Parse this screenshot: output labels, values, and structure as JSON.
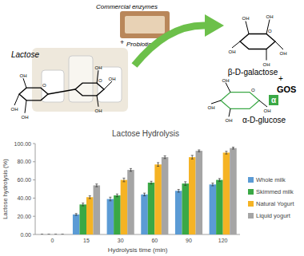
{
  "chart_data": {
    "type": "bar",
    "title": "Lactose Hydrolysis",
    "x_label": "Hydrolysis time (min)",
    "y_label": "Lactose hydrolysis (%)",
    "categories": [
      "0",
      "15",
      "30",
      "60",
      "90",
      "120"
    ],
    "series": [
      {
        "name": "Whole milk",
        "color": "#5b9bd5",
        "values": [
          0,
          22,
          39,
          44,
          48,
          55
        ],
        "errors": [
          0,
          1,
          2,
          1.5,
          1.5,
          1.5
        ]
      },
      {
        "name": "Skimmed milk",
        "color": "#3aa845",
        "values": [
          0,
          33,
          43,
          57,
          56,
          60
        ],
        "errors": [
          0,
          1.5,
          1.5,
          1.5,
          2,
          1.5
        ]
      },
      {
        "name": "Natural Yogurt",
        "color": "#f5b324",
        "values": [
          0,
          41,
          60,
          77,
          85,
          90
        ],
        "errors": [
          0,
          1.5,
          2,
          2,
          2,
          1.5
        ]
      },
      {
        "name": "Liquid yogurt",
        "color": "#a5a5a5",
        "values": [
          0,
          54,
          71,
          85,
          92,
          95
        ],
        "errors": [
          0,
          1.5,
          1.5,
          1.5,
          1,
          1
        ]
      }
    ],
    "ylim": [
      0,
      100
    ],
    "yticks": [
      {
        "value": 0,
        "label": "0.00"
      },
      {
        "value": 20,
        "label": "20.00"
      },
      {
        "value": 40,
        "label": "40.00"
      },
      {
        "value": 60,
        "label": "60.00"
      },
      {
        "value": 80,
        "label": "80.00"
      },
      {
        "value": 100,
        "label": "100.00"
      }
    ],
    "grid": false,
    "legend": "right",
    "annotations": [
      "Commercial enzymes",
      "+",
      "Probiotics",
      "Lactose",
      "β-D-galactose",
      "+",
      "GOS",
      "α-D-glucose",
      "α",
      "OH",
      "O"
    ]
  }
}
